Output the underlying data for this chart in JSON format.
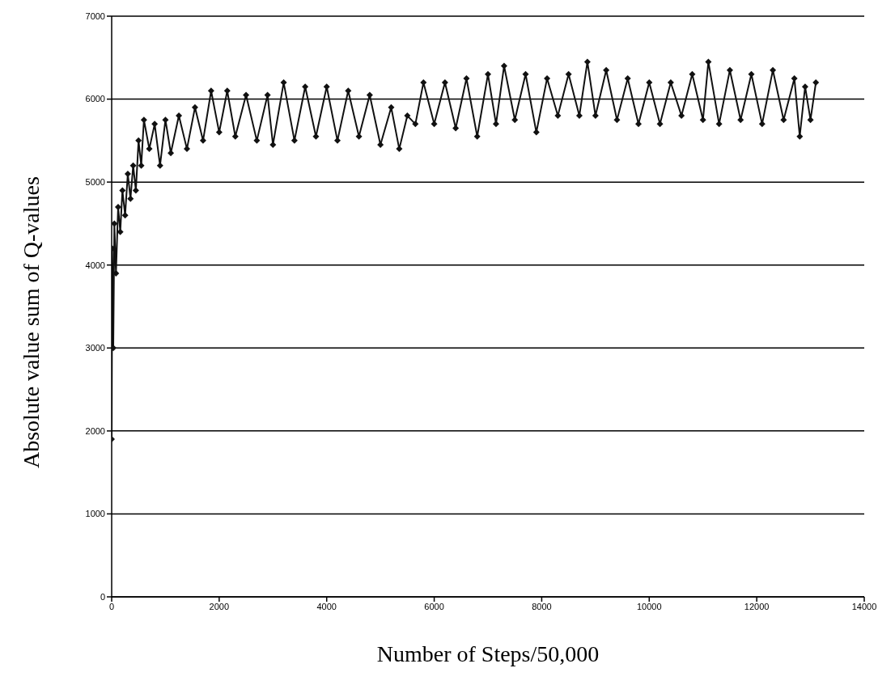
{
  "chart_data": {
    "type": "line",
    "xlabel": "Number of Steps/50,000",
    "ylabel": "Absolute value sum of Q-values",
    "xlim": [
      0,
      14000
    ],
    "xticks": [
      0,
      2000,
      4000,
      6000,
      8000,
      10000,
      12000,
      14000
    ],
    "ylim": [
      0,
      7000
    ],
    "yticks": [
      0,
      1000,
      2000,
      3000,
      4000,
      5000,
      6000,
      7000
    ],
    "grid": "y",
    "marker": "diamond",
    "line_style": "solid",
    "series": [
      {
        "color": "#111111",
        "x": [
          0,
          10,
          30,
          50,
          80,
          120,
          160,
          200,
          250,
          300,
          350,
          400,
          450,
          500,
          550,
          600,
          700,
          800,
          900,
          1000,
          1100,
          1250,
          1400,
          1550,
          1700,
          1850,
          2000,
          2150,
          2300,
          2500,
          2700,
          2900,
          3000,
          3200,
          3400,
          3600,
          3800,
          4000,
          4200,
          4400,
          4600,
          4800,
          5000,
          5200,
          5350,
          5500,
          5650,
          5800,
          6000,
          6200,
          6400,
          6600,
          6800,
          7000,
          7150,
          7300,
          7500,
          7700,
          7900,
          8100,
          8300,
          8500,
          8700,
          8850,
          9000,
          9200,
          9400,
          9600,
          9800,
          10000,
          10200,
          10400,
          10600,
          10800,
          11000,
          11100,
          11300,
          11500,
          11700,
          11900,
          12100,
          12300,
          12500,
          12700,
          12800,
          12900,
          13000,
          13100
        ],
        "values": [
          1900,
          4200,
          3000,
          4500,
          3900,
          4700,
          4400,
          4900,
          4600,
          5100,
          4800,
          5200,
          4900,
          5500,
          5200,
          5750,
          5400,
          5700,
          5200,
          5750,
          5350,
          5800,
          5400,
          5900,
          5500,
          6100,
          5600,
          6100,
          5550,
          6050,
          5500,
          6050,
          5450,
          6200,
          5500,
          6150,
          5550,
          6150,
          5500,
          6100,
          5550,
          6050,
          5450,
          5900,
          5400,
          5800,
          5700,
          6200,
          5700,
          6200,
          5650,
          6250,
          5550,
          6300,
          5700,
          6400,
          5750,
          6300,
          5600,
          6250,
          5800,
          6300,
          5800,
          6450,
          5800,
          6350,
          5750,
          6250,
          5700,
          6200,
          5700,
          6200,
          5800,
          6300,
          5750,
          6450,
          5700,
          6350,
          5750,
          6300,
          5700,
          6350,
          5750,
          6250,
          5550,
          6150,
          5750,
          6200
        ]
      }
    ]
  }
}
